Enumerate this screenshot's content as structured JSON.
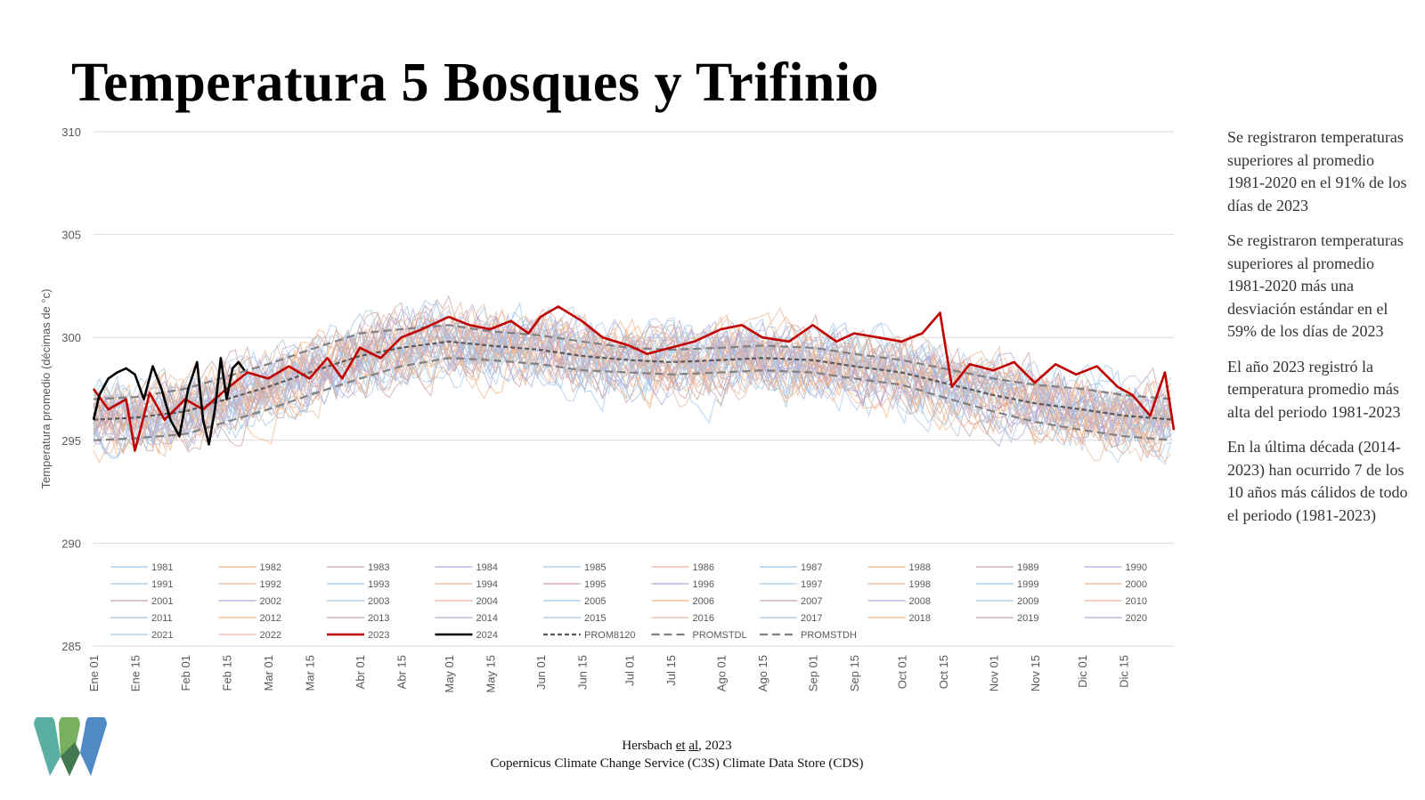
{
  "title": "Temperatura 5 Bosques y Trifinio",
  "notes": [
    "Se registraron temperaturas superiores al promedio 1981-2020 en el 91% de los días de 2023",
    "Se registraron temperaturas superiores al promedio 1981-2020 más una desviación estándar en el 59% de los días de 2023",
    "El año 2023 registró la temperatura promedio más alta del periodo 1981-2023",
    "En la última década (2014-2023) han ocurrido 7 de los 10 años más cálidos de todo el periodo (1981-2023)"
  ],
  "citation": {
    "line1_a": "Hersbach ",
    "line1_et": "et",
    "line1_sp": " ",
    "line1_al": "al",
    "line1_b": ", 2023",
    "line2": "Copernicus Climate Change Service (C3S) Climate Data Store (CDS)"
  },
  "colors": {
    "highlight_2023": "#c00000",
    "highlight_2024": "#000000",
    "reference_dash": "#595959",
    "std_dash": "#808080",
    "grid": "#d9d9d9",
    "logo": [
      "#4aa69b",
      "#6aa84f",
      "#3d7ebf",
      "#2e6b3e"
    ]
  },
  "chart_data": {
    "type": "line",
    "xlabel": "",
    "ylabel": "Temperatura promedio (décimas de °c)",
    "ylim": [
      285,
      310
    ],
    "yticks": [
      285,
      290,
      295,
      300,
      305,
      310
    ],
    "x_unit": "day_of_year",
    "xlim": [
      1,
      366
    ],
    "xticks": [
      {
        "label": "Ene 01",
        "day": 1
      },
      {
        "label": "Ene 15",
        "day": 15
      },
      {
        "label": "Feb 01",
        "day": 32
      },
      {
        "label": "Feb 15",
        "day": 46
      },
      {
        "label": "Mar 01",
        "day": 60
      },
      {
        "label": "Mar 15",
        "day": 74
      },
      {
        "label": "Abr 01",
        "day": 91
      },
      {
        "label": "Abr 15",
        "day": 105
      },
      {
        "label": "May 01",
        "day": 121
      },
      {
        "label": "May 15",
        "day": 135
      },
      {
        "label": "Jun 01",
        "day": 152
      },
      {
        "label": "Jun 15",
        "day": 166
      },
      {
        "label": "Jul 01",
        "day": 182
      },
      {
        "label": "Jul 15",
        "day": 196
      },
      {
        "label": "Ago 01",
        "day": 213
      },
      {
        "label": "Ago 15",
        "day": 227
      },
      {
        "label": "Sep 01",
        "day": 244
      },
      {
        "label": "Sep 15",
        "day": 258
      },
      {
        "label": "Oct 01",
        "day": 274
      },
      {
        "label": "Oct 15",
        "day": 288
      },
      {
        "label": "Nov 01",
        "day": 305
      },
      {
        "label": "Nov 15",
        "day": 319
      },
      {
        "label": "Dic 01",
        "day": 335
      },
      {
        "label": "Dic 15",
        "day": 349
      }
    ],
    "grid": true,
    "legend_position": "bottom-inside",
    "legend": [
      "1981",
      "1982",
      "1983",
      "1984",
      "1985",
      "1986",
      "1987",
      "1988",
      "1989",
      "1990",
      "1991",
      "1992",
      "1993",
      "1994",
      "1995",
      "1996",
      "1997",
      "1998",
      "1999",
      "2000",
      "2001",
      "2002",
      "2003",
      "2004",
      "2005",
      "2006",
      "2007",
      "2008",
      "2009",
      "2010",
      "2011",
      "2012",
      "2013",
      "2014",
      "2015",
      "2016",
      "2017",
      "2018",
      "2019",
      "2020",
      "2021",
      "2022",
      "2023",
      "2024",
      "PROM8120",
      "PROMSTDL",
      "PROMSTDH"
    ],
    "reference_series": [
      {
        "name": "PROM8120",
        "x": [
          1,
          15,
          32,
          46,
          60,
          74,
          91,
          105,
          121,
          135,
          152,
          166,
          182,
          196,
          213,
          227,
          244,
          258,
          274,
          288,
          305,
          319,
          335,
          349,
          366
        ],
        "values": [
          296.0,
          296.1,
          296.4,
          297.0,
          297.6,
          298.3,
          299.1,
          299.5,
          299.8,
          299.6,
          299.4,
          299.1,
          298.9,
          298.8,
          298.9,
          299.0,
          298.9,
          298.6,
          298.3,
          297.8,
          297.2,
          296.8,
          296.5,
          296.2,
          296.0
        ]
      },
      {
        "name": "PROMSTDL",
        "x": [
          1,
          15,
          32,
          46,
          60,
          74,
          91,
          105,
          121,
          135,
          152,
          166,
          182,
          196,
          213,
          227,
          244,
          258,
          274,
          288,
          305,
          319,
          335,
          349,
          366
        ],
        "values": [
          295.0,
          295.1,
          295.3,
          295.9,
          296.5,
          297.2,
          298.0,
          298.6,
          299.0,
          298.9,
          298.7,
          298.4,
          298.3,
          298.2,
          298.3,
          298.4,
          298.3,
          298.0,
          297.7,
          297.1,
          296.4,
          295.9,
          295.5,
          295.2,
          295.0
        ]
      },
      {
        "name": "PROMSTDH",
        "x": [
          1,
          15,
          32,
          46,
          60,
          74,
          91,
          105,
          121,
          135,
          152,
          166,
          182,
          196,
          213,
          227,
          244,
          258,
          274,
          288,
          305,
          319,
          335,
          349,
          366
        ],
        "values": [
          297.0,
          297.1,
          297.5,
          298.1,
          298.7,
          299.4,
          300.2,
          300.4,
          300.6,
          300.3,
          300.1,
          299.8,
          299.5,
          299.4,
          299.5,
          299.6,
          299.5,
          299.2,
          298.9,
          298.5,
          298.0,
          297.7,
          297.5,
          297.2,
          297.0
        ]
      }
    ],
    "highlight_series": [
      {
        "name": "2023",
        "x": [
          1,
          6,
          12,
          15,
          20,
          25,
          32,
          38,
          46,
          53,
          60,
          67,
          74,
          80,
          85,
          91,
          98,
          105,
          112,
          121,
          128,
          135,
          142,
          148,
          152,
          158,
          166,
          173,
          182,
          188,
          196,
          204,
          213,
          220,
          227,
          236,
          244,
          252,
          258,
          266,
          274,
          281,
          287,
          291,
          297,
          305,
          312,
          319,
          326,
          333,
          340,
          347,
          352,
          358,
          363,
          366
        ],
        "values": [
          297.5,
          296.5,
          297.0,
          294.5,
          297.3,
          296.0,
          297.0,
          296.5,
          297.5,
          298.3,
          298.0,
          298.6,
          298.0,
          299.0,
          298.0,
          299.5,
          299.0,
          300.0,
          300.4,
          301.0,
          300.6,
          300.4,
          300.8,
          300.2,
          301.0,
          301.5,
          300.8,
          300.0,
          299.6,
          299.2,
          299.5,
          299.8,
          300.4,
          300.6,
          300.0,
          299.8,
          300.6,
          299.8,
          300.2,
          300.0,
          299.8,
          300.2,
          301.2,
          297.6,
          298.7,
          298.4,
          298.8,
          297.8,
          298.7,
          298.2,
          298.6,
          297.6,
          297.2,
          296.2,
          298.3,
          295.5
        ]
      },
      {
        "name": "2024",
        "x": [
          1,
          3,
          6,
          9,
          12,
          15,
          18,
          21,
          24,
          27,
          30,
          33,
          36,
          38,
          40,
          42,
          44,
          46,
          48,
          50,
          52
        ],
        "values": [
          296.0,
          297.2,
          298.0,
          298.3,
          298.5,
          298.2,
          297.0,
          298.6,
          297.5,
          296.0,
          295.2,
          297.5,
          298.8,
          296.0,
          294.8,
          296.5,
          299.0,
          297.0,
          298.5,
          298.8,
          298.4
        ]
      }
    ]
  }
}
